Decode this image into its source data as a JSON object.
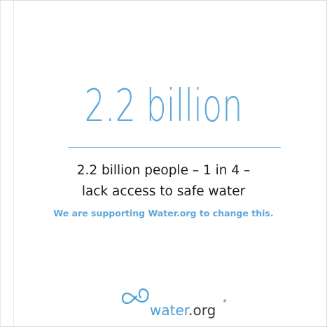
{
  "headline": "2.2 billion",
  "statement": {
    "line1": "2.2 billion people – 1 in 4 –",
    "line2": "lack access to safe water"
  },
  "support_text": "We are supporting Water.org to change this.",
  "logo": {
    "prefix": "water",
    "suffix": ".org",
    "registered": "®",
    "icon": "infinity-drop-icon"
  },
  "colors": {
    "accent": "#5fa8d9",
    "text": "#1a1a1a",
    "logo_text": "#3a3a3a"
  }
}
